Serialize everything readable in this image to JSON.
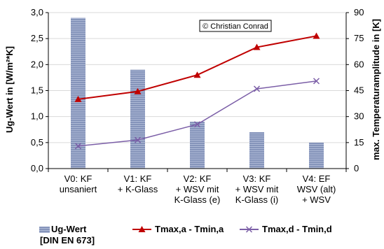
{
  "chart_data": {
    "type": "bar+line",
    "categories": [
      [
        "V0: KF",
        "unsaniert"
      ],
      [
        "V1: KF",
        "+ K-Glass"
      ],
      [
        "V2: KF",
        "+ WSV mit",
        "K-Glass (e)"
      ],
      [
        "V3: KF",
        "+ WSV mit",
        "K-Glass (i)"
      ],
      [
        "V4: EF",
        "WSV (alt)",
        "+ WSV"
      ]
    ],
    "bar_series": {
      "name_lines": [
        "Ug-Wert",
        "[DIN EN 673]"
      ],
      "axis": "left",
      "values": [
        2.9,
        1.9,
        0.9,
        0.7,
        0.5
      ],
      "color": "#7B8DB8"
    },
    "line_series": [
      {
        "name": "Tmax,a - Tmin,a",
        "axis": "right",
        "values": [
          40,
          44.5,
          54,
          70,
          76.5
        ],
        "color": "#C00000",
        "marker": "triangle"
      },
      {
        "name": "Tmax,d - Tmin,d",
        "axis": "right",
        "values": [
          13,
          16.5,
          25.5,
          46,
          50.5
        ],
        "color": "#7B5EA7",
        "marker": "x"
      }
    ],
    "left_axis": {
      "label": "Ug-Wert  in [W/m²*K]",
      "min": 0,
      "max": 3.0,
      "ticks": [
        "0,0",
        "0,5",
        "1,0",
        "1,5",
        "2,0",
        "2,5",
        "3,0"
      ]
    },
    "right_axis": {
      "label": "max. Temperaturamplitude in [K]",
      "min": 0,
      "max": 90,
      "ticks": [
        "0",
        "15",
        "30",
        "45",
        "60",
        "75",
        "90"
      ]
    },
    "grid": true,
    "legend_position": "bottom",
    "annotation": "© Christian Conrad"
  }
}
